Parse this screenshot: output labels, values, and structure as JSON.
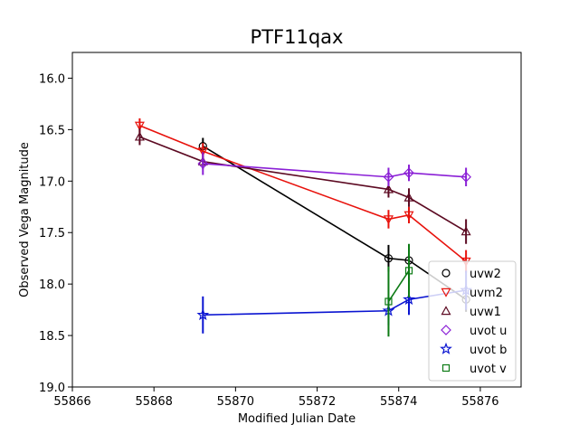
{
  "chart_data": {
    "type": "line",
    "title": "PTF11qax",
    "xlabel": "Modified Julian Date",
    "ylabel": "Observed Vega Magnitude",
    "xlim": [
      55866,
      55877
    ],
    "ylim": [
      19.0,
      15.75
    ],
    "y_inverted": true,
    "grid": false,
    "legend_position": "lower-right",
    "xticks": [
      "55866",
      "55868",
      "55870",
      "55872",
      "55874",
      "55876"
    ],
    "yticks": [
      "16.0",
      "16.5",
      "17.0",
      "17.5",
      "18.0",
      "18.5",
      "19.0"
    ],
    "series": [
      {
        "name": "uvw2",
        "color": "#000000",
        "marker": "circle",
        "x": [
          55869.2,
          55873.75,
          55874.25,
          55875.65
        ],
        "y": [
          16.66,
          17.75,
          17.77,
          18.15
        ],
        "err": [
          0.08,
          0.13,
          0.08,
          0.12
        ]
      },
      {
        "name": "uvm2",
        "color": "#e8120c",
        "marker": "triangle-down",
        "x": [
          55867.65,
          55869.2,
          55873.75,
          55874.25,
          55875.65
        ],
        "y": [
          16.46,
          16.71,
          17.37,
          17.33,
          17.78
        ],
        "err": [
          0.07,
          0.08,
          0.09,
          0.08,
          0.11
        ]
      },
      {
        "name": "uvw1",
        "color": "#5c0a22",
        "marker": "triangle-up",
        "x": [
          55867.65,
          55869.2,
          55873.75,
          55874.25,
          55875.65
        ],
        "y": [
          16.57,
          16.81,
          17.08,
          17.16,
          17.49
        ],
        "err": [
          0.08,
          0.07,
          0.08,
          0.09,
          0.12
        ]
      },
      {
        "name": "uvot u",
        "color": "#8a1fd6",
        "marker": "diamond",
        "x": [
          55869.2,
          55873.75,
          55874.25,
          55875.65
        ],
        "y": [
          16.83,
          16.96,
          16.92,
          16.96
        ],
        "err": [
          0.11,
          0.09,
          0.08,
          0.09
        ]
      },
      {
        "name": "uvot b",
        "color": "#0a14d1",
        "marker": "star",
        "x": [
          55869.2,
          55873.75,
          55874.25,
          55875.65
        ],
        "y": [
          18.3,
          18.26,
          18.15,
          18.06
        ],
        "err": [
          0.18,
          0.14,
          0.15,
          0.19
        ]
      },
      {
        "name": "uvot v",
        "color": "#0c7a14",
        "marker": "square",
        "x": [
          55873.75,
          55874.25
        ],
        "y": [
          18.17,
          17.87
        ],
        "err": [
          0.34,
          0.26
        ]
      }
    ]
  }
}
